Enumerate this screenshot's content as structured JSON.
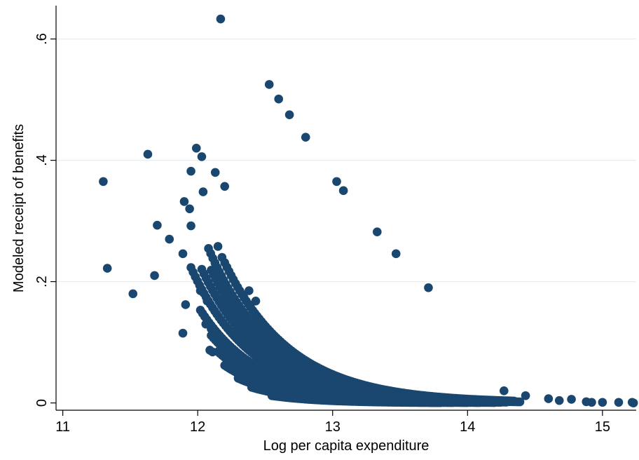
{
  "chart_data": {
    "type": "scatter",
    "title": "",
    "xlabel": "Log per capita expenditure",
    "ylabel": "Modeled receipt of benefits",
    "xlim": [
      10.95,
      15.25
    ],
    "ylim": [
      -0.012,
      0.655
    ],
    "x_ticks": [
      11,
      12,
      13,
      14,
      15
    ],
    "x_tick_labels": [
      "11",
      "12",
      "13",
      "14",
      "15"
    ],
    "y_ticks": [
      0,
      0.2,
      0.4,
      0.6
    ],
    "y_tick_labels": [
      "0",
      ".2",
      ".4",
      ".6"
    ],
    "grid": "horizontal",
    "legend": "none",
    "marker_color": "#1a476f",
    "points": [
      [
        11.3,
        0.365
      ],
      [
        11.33,
        0.222
      ],
      [
        11.52,
        0.18
      ],
      [
        11.63,
        0.41
      ],
      [
        11.68,
        0.21
      ],
      [
        11.7,
        0.293
      ],
      [
        11.79,
        0.27
      ],
      [
        11.89,
        0.246
      ],
      [
        11.9,
        0.332
      ],
      [
        11.89,
        0.115
      ],
      [
        11.91,
        0.162
      ],
      [
        11.94,
        0.32
      ],
      [
        11.95,
        0.382
      ],
      [
        11.95,
        0.292
      ],
      [
        11.99,
        0.42
      ],
      [
        12.03,
        0.406
      ],
      [
        12.04,
        0.348
      ],
      [
        12.13,
        0.38
      ],
      [
        12.17,
        0.633
      ],
      [
        12.2,
        0.357
      ],
      [
        12.02,
        0.185
      ],
      [
        12.07,
        0.168
      ],
      [
        12.06,
        0.13
      ],
      [
        12.1,
        0.122
      ],
      [
        12.09,
        0.087
      ],
      [
        12.11,
        0.084
      ],
      [
        12.18,
        0.24
      ],
      [
        12.15,
        0.258
      ],
      [
        12.27,
        0.065
      ],
      [
        12.33,
        0.059
      ],
      [
        12.38,
        0.185
      ],
      [
        12.43,
        0.168
      ],
      [
        12.47,
        0.048
      ],
      [
        12.53,
        0.525
      ],
      [
        12.6,
        0.501
      ],
      [
        12.68,
        0.475
      ],
      [
        12.8,
        0.438
      ],
      [
        13.03,
        0.365
      ],
      [
        13.08,
        0.35
      ],
      [
        13.33,
        0.282
      ],
      [
        13.47,
        0.246
      ],
      [
        13.71,
        0.19
      ],
      [
        14.27,
        0.02
      ],
      [
        14.43,
        0.012
      ],
      [
        14.6,
        0.007
      ],
      [
        14.68,
        0.004
      ],
      [
        14.77,
        0.006
      ],
      [
        14.88,
        0.002
      ],
      [
        14.92,
        0.001
      ],
      [
        15.0,
        0.001
      ],
      [
        15.12,
        0.001
      ],
      [
        15.22,
        0.001
      ],
      [
        15.23,
        0.0
      ]
    ],
    "curves": [
      {
        "a": 0.345,
        "b": 2.0,
        "x_start": 12.2,
        "x_end": 14.35,
        "step": 0.016
      },
      {
        "a": 0.3,
        "b": 2.05,
        "x_start": 12.08,
        "x_end": 14.3,
        "step": 0.016
      },
      {
        "a": 0.27,
        "b": 2.1,
        "x_start": 12.1,
        "x_end": 14.4,
        "step": 0.016
      },
      {
        "a": 0.235,
        "b": 2.15,
        "x_start": 12.03,
        "x_end": 14.3,
        "step": 0.016
      },
      {
        "a": 0.2,
        "b": 2.2,
        "x_start": 11.95,
        "x_end": 14.3,
        "step": 0.016
      },
      {
        "a": 0.16,
        "b": 2.25,
        "x_start": 12.02,
        "x_end": 14.25,
        "step": 0.016
      },
      {
        "a": 0.14,
        "b": 2.3,
        "x_start": 12.1,
        "x_end": 14.2,
        "step": 0.016
      },
      {
        "a": 0.12,
        "b": 2.35,
        "x_start": 12.15,
        "x_end": 14.2,
        "step": 0.016
      },
      {
        "a": 0.1,
        "b": 2.4,
        "x_start": 12.2,
        "x_end": 14.1,
        "step": 0.016
      },
      {
        "a": 0.085,
        "b": 2.45,
        "x_start": 12.3,
        "x_end": 14.0,
        "step": 0.016
      },
      {
        "a": 0.07,
        "b": 2.5,
        "x_start": 12.4,
        "x_end": 13.9,
        "step": 0.016
      },
      {
        "a": 0.05,
        "b": 2.6,
        "x_start": 12.55,
        "x_end": 13.8,
        "step": 0.016
      }
    ]
  }
}
